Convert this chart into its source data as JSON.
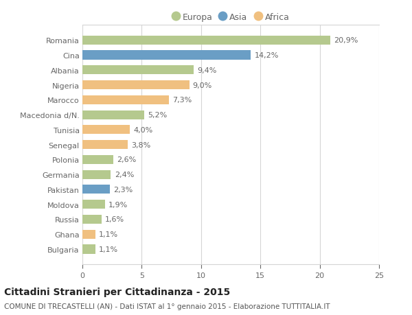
{
  "categories": [
    "Bulgaria",
    "Ghana",
    "Russia",
    "Moldova",
    "Pakistan",
    "Germania",
    "Polonia",
    "Senegal",
    "Tunisia",
    "Macedonia d/N.",
    "Marocco",
    "Nigeria",
    "Albania",
    "Cina",
    "Romania"
  ],
  "values": [
    1.1,
    1.1,
    1.6,
    1.9,
    2.3,
    2.4,
    2.6,
    3.8,
    4.0,
    5.2,
    7.3,
    9.0,
    9.4,
    14.2,
    20.9
  ],
  "labels": [
    "1,1%",
    "1,1%",
    "1,6%",
    "1,9%",
    "2,3%",
    "2,4%",
    "2,6%",
    "3,8%",
    "4,0%",
    "5,2%",
    "7,3%",
    "9,0%",
    "9,4%",
    "14,2%",
    "20,9%"
  ],
  "colors": [
    "#b5c98e",
    "#f0c080",
    "#b5c98e",
    "#b5c98e",
    "#6a9ec5",
    "#b5c98e",
    "#b5c98e",
    "#f0c080",
    "#f0c080",
    "#b5c98e",
    "#f0c080",
    "#f0c080",
    "#b5c98e",
    "#6a9ec5",
    "#b5c98e"
  ],
  "legend": [
    {
      "label": "Europa",
      "color": "#b5c98e"
    },
    {
      "label": "Asia",
      "color": "#6a9ec5"
    },
    {
      "label": "Africa",
      "color": "#f0c080"
    }
  ],
  "xlim": [
    0,
    25
  ],
  "xticks": [
    0,
    5,
    10,
    15,
    20,
    25
  ],
  "title": "Cittadini Stranieri per Cittadinanza - 2015",
  "subtitle": "COMUNE DI TRECASTELLI (AN) - Dati ISTAT al 1° gennaio 2015 - Elaborazione TUTTITALIA.IT",
  "bg_color": "#ffffff",
  "grid_color": "#d5d5d5",
  "bar_height": 0.6,
  "label_fontsize": 8,
  "tick_fontsize": 8,
  "title_fontsize": 10,
  "subtitle_fontsize": 7.5
}
